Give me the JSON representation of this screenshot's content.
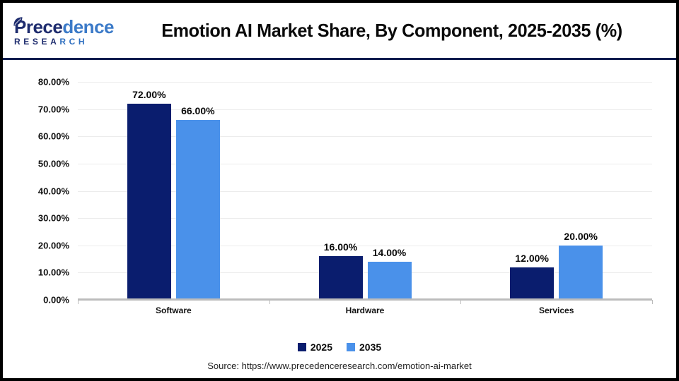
{
  "header": {
    "logo": {
      "word_dark": "Prece",
      "word_light": "dence",
      "sub_dark": "RESEA",
      "sub_light": "RCH"
    }
  },
  "chart_data": {
    "type": "bar",
    "title": "Emotion AI Market Share, By Component, 2025-2035 (%)",
    "xlabel": "",
    "ylabel": "",
    "ylim": [
      0,
      80
    ],
    "grid": true,
    "legend_position": "bottom",
    "categories": [
      "Software",
      "Hardware",
      "Services"
    ],
    "series": [
      {
        "name": "2025",
        "color": "#0A1D6E",
        "values": [
          72,
          16,
          12
        ],
        "labels": [
          "72.00%",
          "16.00%",
          "12.00%"
        ]
      },
      {
        "name": "2035",
        "color": "#4A91EA",
        "values": [
          66,
          14,
          20
        ],
        "labels": [
          "66.00%",
          "14.00%",
          "20.00%"
        ]
      }
    ],
    "y_ticks": [
      {
        "value": 80,
        "label": "80.00%"
      },
      {
        "value": 70,
        "label": "70.00%"
      },
      {
        "value": 60,
        "label": "60.00%"
      },
      {
        "value": 50,
        "label": "50.00%"
      },
      {
        "value": 40,
        "label": "40.00%"
      },
      {
        "value": 30,
        "label": "30.00%"
      },
      {
        "value": 20,
        "label": "20.00%"
      },
      {
        "value": 10,
        "label": "10.00%"
      },
      {
        "value": 0,
        "label": "0.00%"
      }
    ]
  },
  "footer": {
    "source": "Source: https://www.precedenceresearch.com/emotion-ai-market"
  },
  "colors": {
    "bar_2025": "#0A1D6E",
    "bar_2035": "#4A91EA",
    "logo_navy": "#1E2C6E",
    "logo_blue": "#3B7AC8",
    "header_divider": "#101C4E",
    "gridline": "#ECECEC",
    "axis_line": "#BCBCBC",
    "frame": "#000000"
  }
}
